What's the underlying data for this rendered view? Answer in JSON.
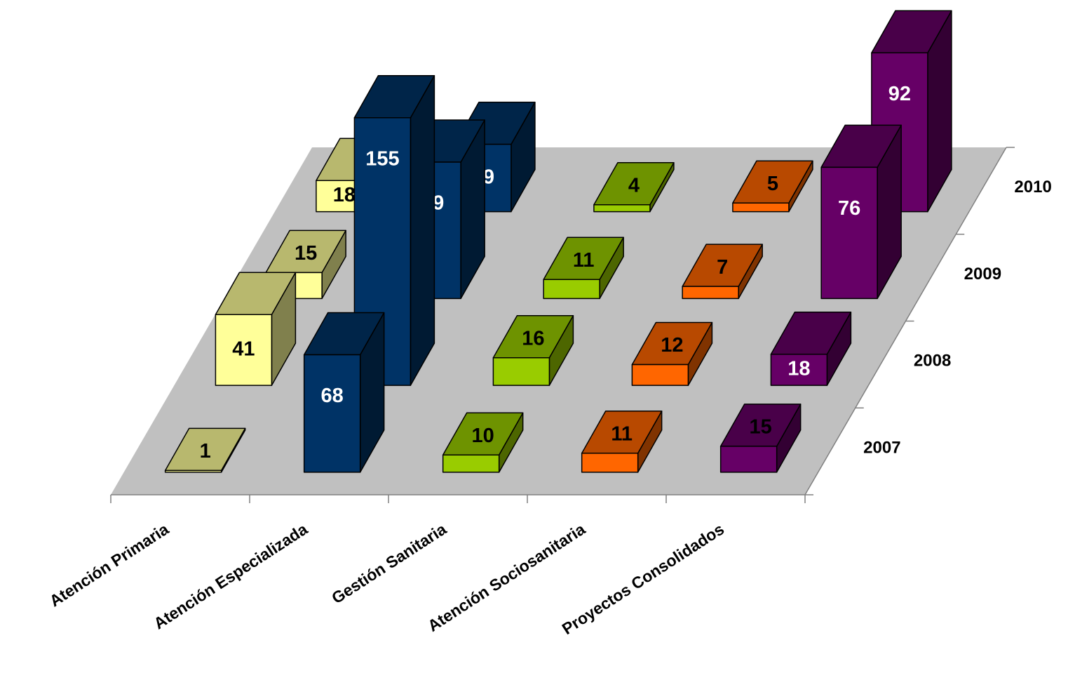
{
  "chart_data": {
    "type": "bar3d",
    "categories": [
      "Atención Primaria",
      "Atención Especializada",
      "Gestión Sanitaria",
      "Atención Sociosanitaria",
      "Proyectos Consolidados"
    ],
    "colors": [
      "#ffff99",
      "#003366",
      "#99cc00",
      "#ff6600",
      "#660066"
    ],
    "series": [
      {
        "name": "2007",
        "values": [
          1,
          68,
          10,
          11,
          15
        ]
      },
      {
        "name": "2008",
        "values": [
          41,
          155,
          16,
          12,
          18
        ]
      },
      {
        "name": "2009",
        "values": [
          15,
          79,
          11,
          7,
          76
        ]
      },
      {
        "name": "2010",
        "values": [
          18,
          39,
          4,
          5,
          92
        ]
      }
    ]
  }
}
